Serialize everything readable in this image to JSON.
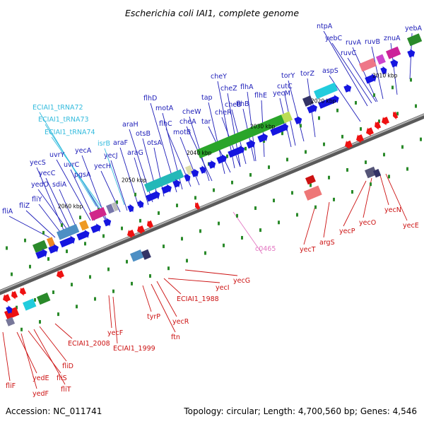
{
  "title": "Escherichia coli IAI1, complete genome",
  "footer": {
    "accession": "Accession: NC_011741",
    "summary": "Topology: circular; Length: 4,700,560 bp; Genes: 4,546"
  },
  "colors": {
    "forward_label": "#1c1cb8",
    "reverse_label": "#cc1111",
    "trna_label": "#33bbdd",
    "other_label": "#e377c2",
    "forward_gene": "#1515e0",
    "reverse_gene": "#ee1111",
    "backbone": "#888888"
  },
  "kbp_ticks": [
    "2060 kbp",
    "2050 kbp",
    "2040 kbp",
    "2030 kbp",
    "2020 kbp",
    "2010 kbp"
  ],
  "forward_labels": [
    "fliA",
    "fliZ",
    "fliY",
    "yedO",
    "sdiA",
    "yecC",
    "yecS",
    "uvrY",
    "uvrC",
    "yecA",
    "pgsA",
    "yecH",
    "yecJ",
    "araF",
    "araG",
    "araH",
    "otsB",
    "otsA",
    "flhD",
    "motA",
    "flhC",
    "motB",
    "cheW",
    "cheA",
    "tap",
    "tar",
    "cheY",
    "cheZ",
    "cheB",
    "cheR",
    "flhA",
    "flhB",
    "flhE",
    "cutC",
    "yecM",
    "torY",
    "torZ",
    "aspS",
    "ntpA",
    "yebC",
    "ruvA",
    "ruvC",
    "ruvB",
    "znuA",
    "yebA"
  ],
  "trna_labels": [
    "ECIAI1_tRNA72",
    "ECIAI1_tRNA73",
    "ECIAI1_tRNA74",
    "isrB"
  ],
  "reverse_labels": [
    "fliF",
    "yedE",
    "yedF",
    "fliS",
    "fliD",
    "fliT",
    "ECIAI1_2008",
    "yecF",
    "ECIAI1_1999",
    "tyrP",
    "ftn",
    "yecR",
    "ECIAI1_1988",
    "yecI",
    "yecG",
    "yecT",
    "argS",
    "yecP",
    "yecO",
    "yecN",
    "yecE"
  ],
  "other_labels": [
    "c0465"
  ]
}
